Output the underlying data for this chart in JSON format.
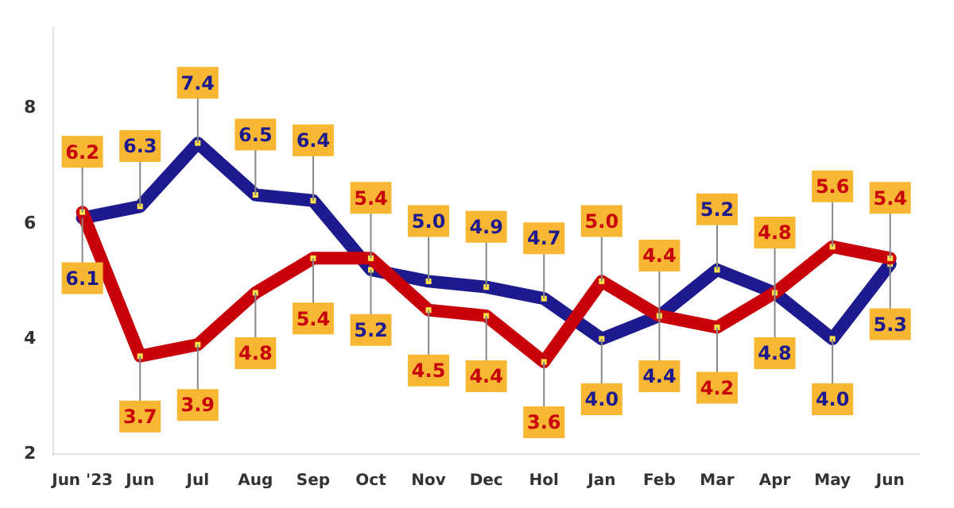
{
  "chart_data": {
    "type": "line",
    "categories": [
      "Jun '23",
      "Jun",
      "Jul",
      "Aug",
      "Sep",
      "Oct",
      "Nov",
      "Dec",
      "Hol",
      "Jan",
      "Feb",
      "Mar",
      "Apr",
      "May",
      "Jun"
    ],
    "series": [
      {
        "color": "#c8000a",
        "values": [
          6.2,
          3.7,
          3.9,
          4.8,
          5.4,
          5.4,
          4.5,
          4.4,
          3.6,
          5.0,
          4.4,
          4.2,
          4.8,
          5.6,
          5.4
        ],
        "value_labels": [
          "6.2",
          "3.7",
          "3.9",
          "4.8",
          "5.4",
          "5.4",
          "4.5",
          "4.4",
          "3.6",
          "5.0",
          "4.4",
          "4.2",
          "4.8",
          "5.6",
          "5.4"
        ]
      },
      {
        "color": "#1c1a8e",
        "values": [
          6.1,
          6.3,
          7.4,
          6.5,
          6.4,
          5.2,
          5.0,
          4.9,
          4.7,
          4.0,
          4.4,
          5.2,
          4.8,
          4.0,
          5.3
        ],
        "value_labels": [
          "6.1",
          "6.3",
          "7.4",
          "6.5",
          "6.4",
          "5.2",
          "5.0",
          "4.9",
          "4.7",
          "4.0",
          "4.4",
          "5.2",
          "4.8",
          "4.0",
          "5.3"
        ]
      }
    ],
    "ylim": [
      2,
      9.4
    ],
    "yticks": [
      2,
      4,
      6,
      8
    ],
    "grid": false,
    "legend": false,
    "marker": "square",
    "line_style": "solid"
  }
}
